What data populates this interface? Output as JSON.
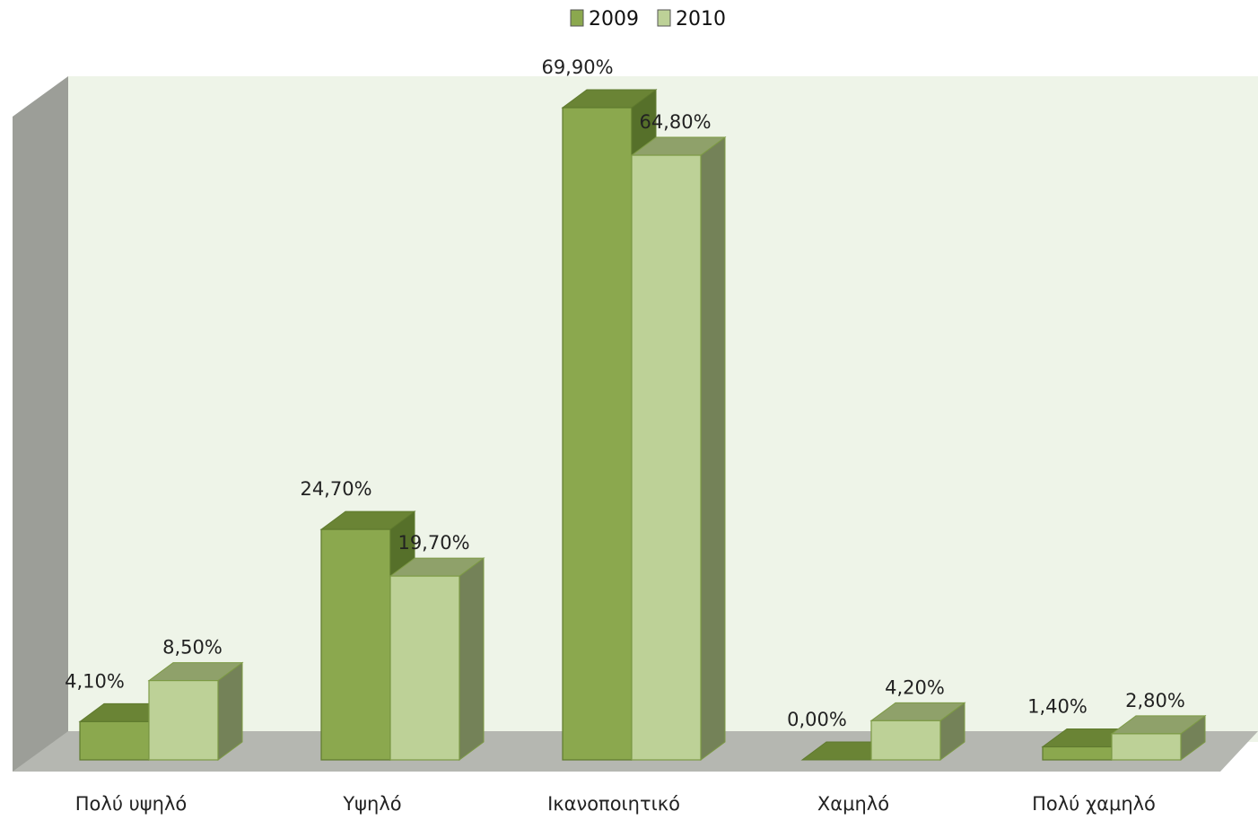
{
  "chart_data": {
    "type": "bar",
    "categories": [
      "Πολύ υψηλό",
      "Υψηλό",
      "Ικανοποιητικό",
      "Χαμηλό",
      "Πολύ χαμηλό"
    ],
    "series": [
      {
        "name": "2009",
        "values": [
          4.1,
          24.7,
          69.9,
          0.0,
          1.4
        ],
        "labels": [
          "4,10%",
          "24,70%",
          "69,90%",
          "0,00%",
          "1,40%"
        ]
      },
      {
        "name": "2010",
        "values": [
          8.5,
          19.7,
          64.8,
          4.2,
          2.8
        ],
        "labels": [
          "8,50%",
          "19,70%",
          "64,80%",
          "4,20%",
          "2,80%"
        ]
      }
    ],
    "unit": "%",
    "ylim": [
      0,
      70
    ],
    "three_d": true,
    "grid": false,
    "legend": "top-center",
    "colors": {
      "series_2009": {
        "front": "#8ba84e",
        "top": "#6a8435",
        "side": "#56702a",
        "edge": "#5f7a2e"
      },
      "series_2010": {
        "front": "#bdd197",
        "top": "#8fa16a",
        "side": "#748258",
        "edge": "#7d9a45"
      },
      "back_wall": "#eef4e8",
      "side_wall": "#9c9e98",
      "floor": "#b5b7b1"
    }
  }
}
